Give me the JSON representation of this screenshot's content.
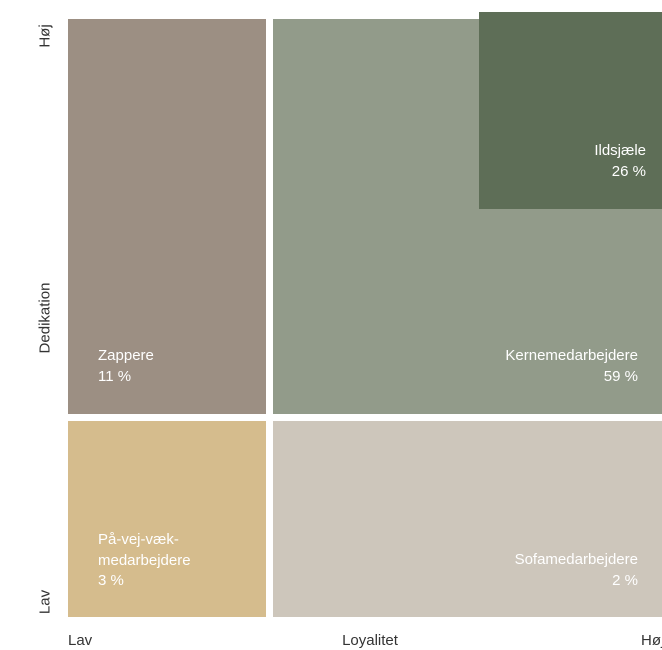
{
  "y_axis": {
    "title": "Dedikation",
    "high": "Høj",
    "low": "Lav"
  },
  "x_axis": {
    "title": "Loyalitet",
    "low": "Lav",
    "high": "Høj"
  },
  "segments": [
    {
      "lines": [
        "Zappere",
        "11 %"
      ]
    },
    {
      "lines": [
        "Kernemedarbejdere",
        "59 %"
      ]
    },
    {
      "lines": [
        "Ildsjæle",
        "26 %"
      ]
    },
    {
      "lines": [
        "På-vej-væk-",
        "medarbejdere",
        "3 %"
      ]
    },
    {
      "lines": [
        "Sofamedarbejdere",
        "2 %"
      ]
    }
  ]
}
